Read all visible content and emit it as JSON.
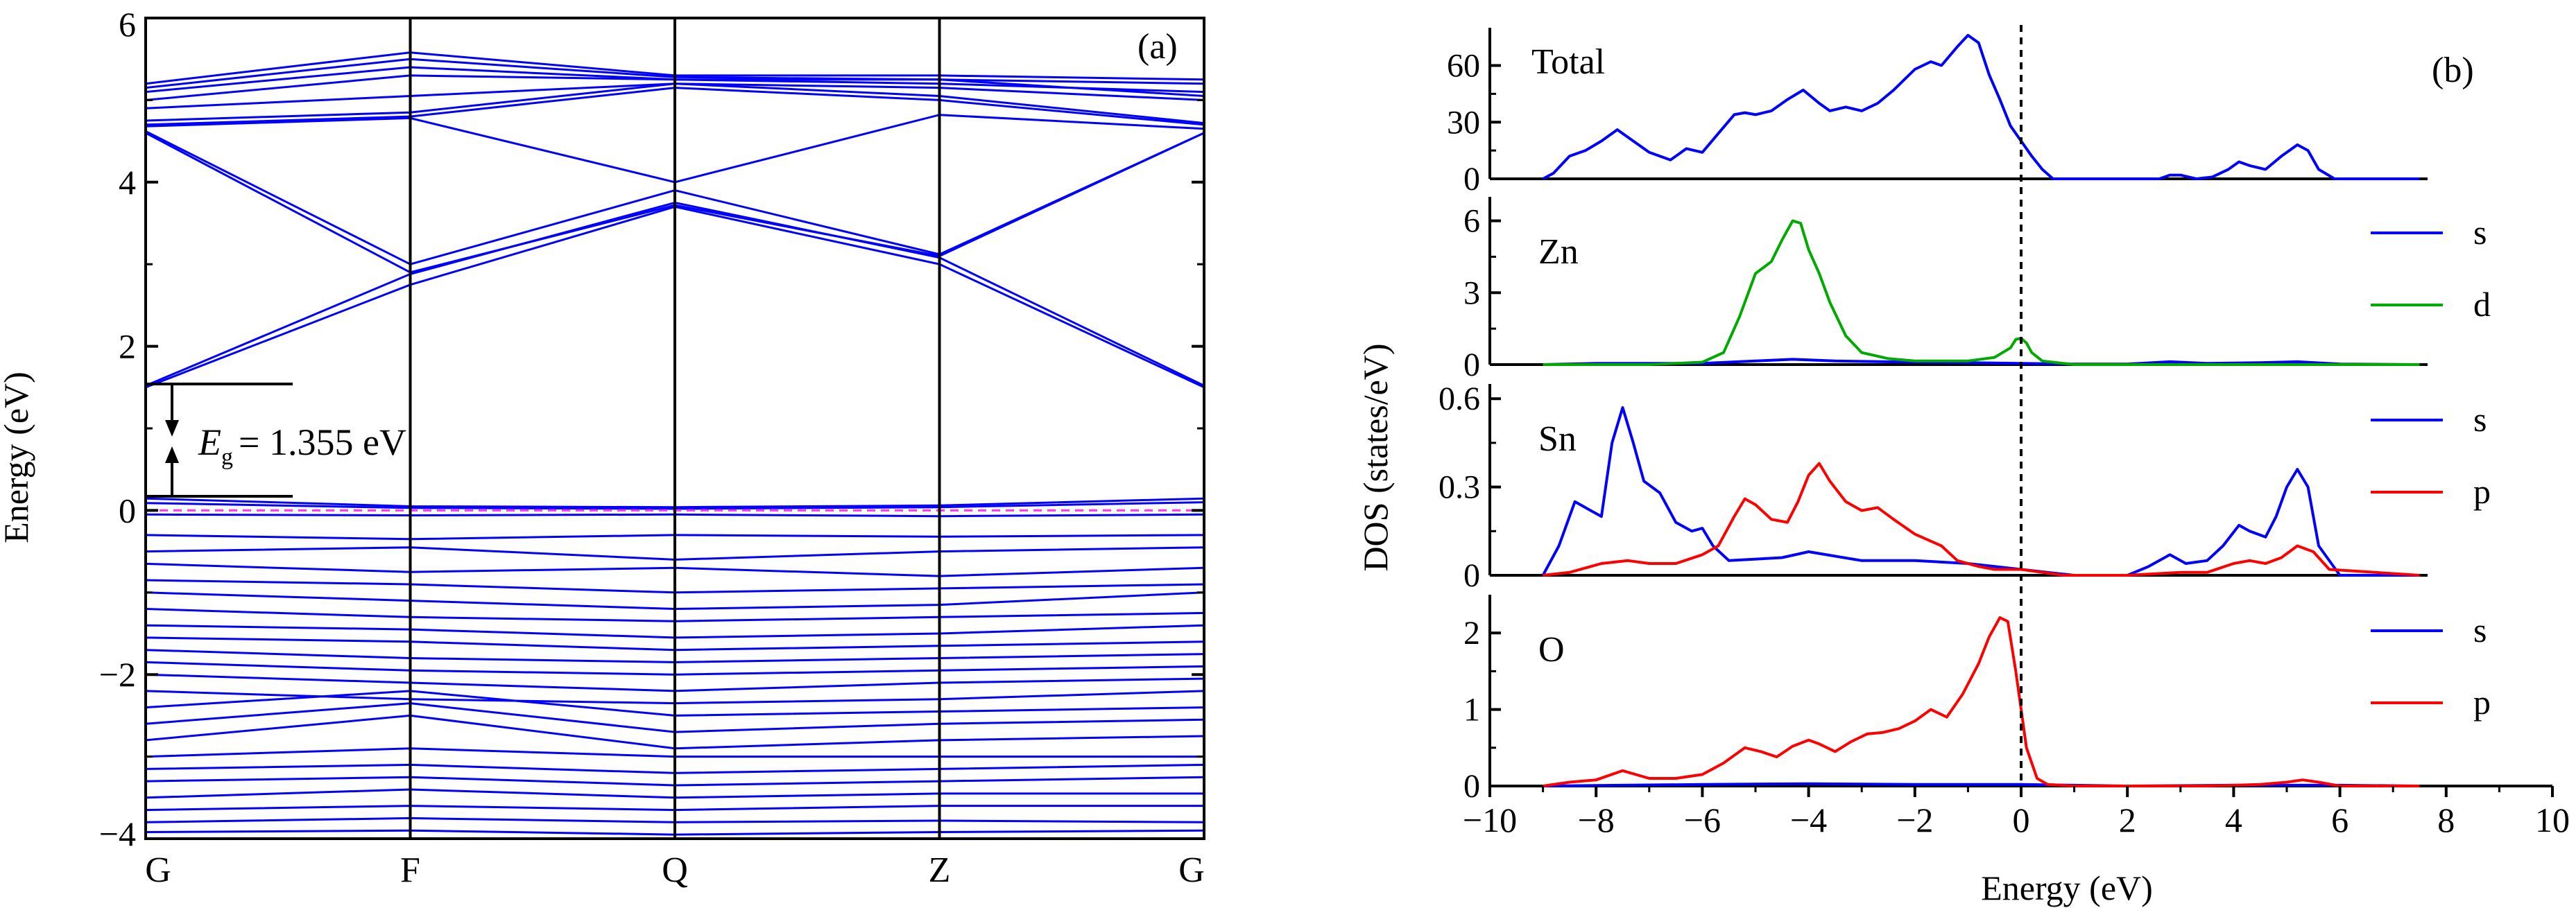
{
  "chart_data": [
    {
      "panel": "(a)",
      "type": "line",
      "xlabel": "",
      "ylabel": "Energy (eV)",
      "ylim": [
        -4,
        6
      ],
      "yticks": [
        -4,
        -2,
        0,
        2,
        4,
        6
      ],
      "ytick_labels": [
        "−4",
        "−2",
        "0",
        "2",
        "4",
        "6"
      ],
      "k_points": [
        "G",
        "F",
        "Q",
        "Z",
        "G"
      ],
      "fermi_level": 0,
      "band_gap": {
        "label_symbol": "E",
        "label_sub": "g",
        "label_value": "= 1.355 eV",
        "cbm": 1.5,
        "vbm": 0.145
      },
      "series": [
        {
          "values": [
            1.5,
            2.75,
            3.7,
            3.0,
            1.5
          ],
          "color": "#0000ff"
        },
        {
          "values": [
            1.52,
            2.88,
            3.75,
            3.08,
            1.52
          ],
          "color": "#0000ff"
        },
        {
          "values": [
            4.6,
            2.9,
            3.72,
            3.1,
            4.6
          ],
          "color": "#0000ff"
        },
        {
          "values": [
            4.62,
            3.0,
            3.9,
            3.12,
            4.6
          ],
          "color": "#0000ff"
        },
        {
          "values": [
            4.68,
            4.78,
            4.0,
            4.82,
            4.65
          ],
          "color": "#0000ff"
        },
        {
          "values": [
            4.7,
            4.8,
            5.15,
            5.0,
            4.7
          ],
          "color": "#0000ff"
        },
        {
          "values": [
            4.75,
            4.85,
            5.2,
            5.05,
            4.72
          ],
          "color": "#0000ff"
        },
        {
          "values": [
            4.9,
            5.05,
            5.2,
            5.15,
            5.0
          ],
          "color": "#0000ff"
        },
        {
          "values": [
            5.0,
            5.3,
            5.25,
            5.25,
            5.05
          ],
          "color": "#0000ff"
        },
        {
          "values": [
            5.1,
            5.4,
            5.25,
            5.2,
            5.1
          ],
          "color": "#0000ff"
        },
        {
          "values": [
            5.15,
            5.5,
            5.28,
            5.25,
            5.2
          ],
          "color": "#0000ff"
        },
        {
          "values": [
            5.2,
            5.58,
            5.3,
            5.3,
            5.25
          ],
          "color": "#0000ff"
        },
        {
          "values": [
            0.145,
            0.05,
            0.04,
            0.06,
            0.145
          ],
          "color": "#0000ff"
        },
        {
          "values": [
            0.09,
            0.03,
            0.02,
            0.04,
            0.1
          ],
          "color": "#0000ff"
        },
        {
          "values": [
            -0.05,
            -0.06,
            -0.05,
            -0.07,
            -0.05
          ],
          "color": "#0000ff"
        },
        {
          "values": [
            -0.3,
            -0.35,
            -0.3,
            -0.32,
            -0.3
          ],
          "color": "#0000ff"
        },
        {
          "values": [
            -0.5,
            -0.45,
            -0.6,
            -0.5,
            -0.45
          ],
          "color": "#0000ff"
        },
        {
          "values": [
            -0.65,
            -0.75,
            -0.7,
            -0.8,
            -0.7
          ],
          "color": "#0000ff"
        },
        {
          "values": [
            -0.85,
            -0.9,
            -1.0,
            -0.95,
            -0.9
          ],
          "color": "#0000ff"
        },
        {
          "values": [
            -1.0,
            -1.1,
            -1.2,
            -1.15,
            -1.0
          ],
          "color": "#0000ff"
        },
        {
          "values": [
            -1.2,
            -1.3,
            -1.35,
            -1.3,
            -1.25
          ],
          "color": "#0000ff"
        },
        {
          "values": [
            -1.4,
            -1.45,
            -1.55,
            -1.5,
            -1.4
          ],
          "color": "#0000ff"
        },
        {
          "values": [
            -1.55,
            -1.6,
            -1.7,
            -1.65,
            -1.6
          ],
          "color": "#0000ff"
        },
        {
          "values": [
            -1.7,
            -1.8,
            -1.85,
            -1.8,
            -1.75
          ],
          "color": "#0000ff"
        },
        {
          "values": [
            -1.85,
            -1.95,
            -2.0,
            -1.95,
            -1.9
          ],
          "color": "#0000ff"
        },
        {
          "values": [
            -2.0,
            -2.1,
            -2.2,
            -2.1,
            -2.05
          ],
          "color": "#0000ff"
        },
        {
          "values": [
            -2.2,
            -2.3,
            -2.35,
            -2.3,
            -2.2
          ],
          "color": "#0000ff"
        },
        {
          "values": [
            -2.4,
            -2.2,
            -2.5,
            -2.45,
            -2.4
          ],
          "color": "#0000ff"
        },
        {
          "values": [
            -2.6,
            -2.35,
            -2.7,
            -2.6,
            -2.55
          ],
          "color": "#0000ff"
        },
        {
          "values": [
            -2.8,
            -2.5,
            -2.9,
            -2.8,
            -2.75
          ],
          "color": "#0000ff"
        },
        {
          "values": [
            -3.0,
            -2.9,
            -3.0,
            -3.0,
            -3.0
          ],
          "color": "#0000ff"
        },
        {
          "values": [
            -3.15,
            -3.1,
            -3.2,
            -3.15,
            -3.1
          ],
          "color": "#0000ff"
        },
        {
          "values": [
            -3.3,
            -3.25,
            -3.35,
            -3.3,
            -3.25
          ],
          "color": "#0000ff"
        },
        {
          "values": [
            -3.5,
            -3.4,
            -3.5,
            -3.45,
            -3.45
          ],
          "color": "#0000ff"
        },
        {
          "values": [
            -3.65,
            -3.6,
            -3.65,
            -3.6,
            -3.6
          ],
          "color": "#0000ff"
        },
        {
          "values": [
            -3.8,
            -3.75,
            -3.8,
            -3.78,
            -3.8
          ],
          "color": "#0000ff"
        },
        {
          "values": [
            -3.92,
            -3.9,
            -3.95,
            -3.92,
            -3.9
          ],
          "color": "#0000ff"
        }
      ]
    },
    {
      "panel": "(b)",
      "type": "line",
      "xlabel": "Energy (eV)",
      "ylabel": "DOS (states/eV)",
      "xlim": [
        -10,
        10
      ],
      "xticks": [
        -10,
        -8,
        -6,
        -4,
        -2,
        0,
        2,
        4,
        6,
        8,
        10
      ],
      "xtick_labels": [
        "−10",
        "−8",
        "−6",
        "−4",
        "−2",
        "0",
        "2",
        "4",
        "6",
        "8",
        "10"
      ],
      "fermi_level": 0,
      "subplots": [
        {
          "label": "Total",
          "ylim": [
            0,
            80
          ],
          "yticks": [
            0,
            30,
            60
          ],
          "ytick_labels": [
            "0",
            "30",
            "60"
          ],
          "series": [
            {
              "name": "",
              "color": "#0000ff",
              "x": [
                -9.0,
                -8.8,
                -8.5,
                -8.2,
                -7.9,
                -7.6,
                -7.3,
                -7.0,
                -6.6,
                -6.3,
                -6.0,
                -5.7,
                -5.4,
                -5.2,
                -5.0,
                -4.7,
                -4.4,
                -4.1,
                -3.8,
                -3.6,
                -3.3,
                -3.0,
                -2.7,
                -2.4,
                -2.0,
                -1.7,
                -1.5,
                -1.2,
                -1.0,
                -0.8,
                -0.6,
                -0.4,
                -0.2,
                0.0,
                0.2,
                0.4,
                0.6,
                1.0,
                2.0,
                2.6,
                2.8,
                3.0,
                3.3,
                3.6,
                3.9,
                4.1,
                4.3,
                4.6,
                4.9,
                5.2,
                5.4,
                5.6,
                5.9,
                7.5
              ],
              "y": [
                0,
                3,
                12,
                15,
                20,
                26,
                20,
                14,
                10,
                16,
                14,
                24,
                34,
                35,
                34,
                36,
                42,
                47,
                40,
                36,
                38,
                36,
                40,
                47,
                58,
                62,
                60,
                70,
                76,
                72,
                55,
                42,
                28,
                20,
                12,
                5,
                0,
                0,
                0,
                0,
                2,
                2,
                0,
                1,
                5,
                9,
                7,
                5,
                12,
                18,
                15,
                5,
                0,
                0
              ]
            }
          ]
        },
        {
          "label": "Zn",
          "ylim": [
            0,
            7
          ],
          "yticks": [
            0,
            3,
            6
          ],
          "ytick_labels": [
            "0",
            "3",
            "6"
          ],
          "series": [
            {
              "name": "s",
              "color": "#0000ff",
              "x": [
                -9.0,
                -8.0,
                -6.0,
                -5.0,
                -4.3,
                -3.5,
                -2.0,
                -1.0,
                0.0,
                1.0,
                2.0,
                2.8,
                3.5,
                4.5,
                5.2,
                6.0,
                7.5
              ],
              "y": [
                0,
                0.05,
                0.05,
                0.15,
                0.22,
                0.15,
                0.1,
                0.08,
                0.05,
                0.02,
                0.02,
                0.12,
                0.05,
                0.08,
                0.12,
                0.02,
                0
              ]
            },
            {
              "name": "d",
              "color": "#00aa00",
              "x": [
                -9.0,
                -7.0,
                -6.0,
                -5.6,
                -5.3,
                -5.0,
                -4.7,
                -4.5,
                -4.3,
                -4.15,
                -4.0,
                -3.8,
                -3.6,
                -3.3,
                -3.0,
                -2.5,
                -2.0,
                -1.0,
                -0.5,
                -0.2,
                -0.1,
                0.0,
                0.1,
                0.2,
                0.4,
                1.0,
                7.5
              ],
              "y": [
                0,
                0,
                0.1,
                0.5,
                2.0,
                3.8,
                4.3,
                5.2,
                6.0,
                5.9,
                4.8,
                3.8,
                2.6,
                1.2,
                0.5,
                0.25,
                0.15,
                0.15,
                0.3,
                0.7,
                1.05,
                1.1,
                0.9,
                0.5,
                0.15,
                0,
                0
              ]
            }
          ]
        },
        {
          "label": "Sn",
          "ylim": [
            0,
            0.65
          ],
          "yticks": [
            0,
            0.3,
            0.6
          ],
          "ytick_labels": [
            "0",
            "0.3",
            "0.6"
          ],
          "series": [
            {
              "name": "s",
              "color": "#0000ff",
              "x": [
                -9.0,
                -8.7,
                -8.4,
                -8.1,
                -7.9,
                -7.7,
                -7.5,
                -7.3,
                -7.1,
                -6.8,
                -6.5,
                -6.2,
                -6.0,
                -5.8,
                -5.5,
                -4.5,
                -4.0,
                -3.0,
                -2.0,
                -1.0,
                0.0,
                0.5,
                1.0,
                2.0,
                2.4,
                2.8,
                3.1,
                3.5,
                3.8,
                4.1,
                4.3,
                4.6,
                4.8,
                5.0,
                5.2,
                5.4,
                5.6,
                6.0,
                7.5
              ],
              "y": [
                0,
                0.1,
                0.25,
                0.22,
                0.2,
                0.45,
                0.57,
                0.45,
                0.32,
                0.28,
                0.18,
                0.15,
                0.16,
                0.1,
                0.05,
                0.06,
                0.08,
                0.05,
                0.05,
                0.04,
                0.02,
                0.01,
                0,
                0,
                0.03,
                0.07,
                0.04,
                0.05,
                0.1,
                0.17,
                0.15,
                0.13,
                0.2,
                0.3,
                0.36,
                0.3,
                0.1,
                0,
                0
              ]
            },
            {
              "name": "p",
              "color": "#ff0000",
              "x": [
                -9.0,
                -8.5,
                -7.9,
                -7.4,
                -7.0,
                -6.5,
                -6.0,
                -5.7,
                -5.4,
                -5.2,
                -5.0,
                -4.7,
                -4.4,
                -4.2,
                -4.0,
                -3.8,
                -3.6,
                -3.3,
                -3.0,
                -2.7,
                -2.4,
                -2.0,
                -1.5,
                -1.2,
                -0.8,
                -0.5,
                0.0,
                0.4,
                0.8,
                2.0,
                3.0,
                3.5,
                4.0,
                4.3,
                4.6,
                4.9,
                5.2,
                5.5,
                5.8,
                7.5
              ],
              "y": [
                0,
                0.01,
                0.04,
                0.05,
                0.04,
                0.04,
                0.07,
                0.1,
                0.2,
                0.26,
                0.24,
                0.19,
                0.18,
                0.25,
                0.34,
                0.38,
                0.32,
                0.25,
                0.22,
                0.23,
                0.19,
                0.14,
                0.1,
                0.05,
                0.03,
                0.02,
                0.02,
                0.01,
                0,
                0,
                0.01,
                0.01,
                0.04,
                0.05,
                0.04,
                0.06,
                0.1,
                0.08,
                0.02,
                0
              ]
            }
          ]
        },
        {
          "label": "O",
          "ylim": [
            0,
            2.5
          ],
          "yticks": [
            0,
            1,
            2
          ],
          "ytick_labels": [
            "0",
            "1",
            "2"
          ],
          "series": [
            {
              "name": "s",
              "color": "#0000ff",
              "x": [
                -9.0,
                -6.0,
                -4.0,
                -2.0,
                0.0,
                2.0,
                4.0,
                6.0,
                7.5
              ],
              "y": [
                0,
                0.02,
                0.03,
                0.02,
                0.02,
                0,
                0.01,
                0.01,
                0
              ]
            },
            {
              "name": "p",
              "color": "#ff0000",
              "x": [
                -9.0,
                -8.5,
                -8.0,
                -7.5,
                -7.0,
                -6.5,
                -6.0,
                -5.6,
                -5.2,
                -4.9,
                -4.6,
                -4.3,
                -4.0,
                -3.8,
                -3.5,
                -3.2,
                -2.9,
                -2.6,
                -2.3,
                -2.0,
                -1.7,
                -1.4,
                -1.1,
                -0.8,
                -0.6,
                -0.4,
                -0.25,
                -0.1,
                0.1,
                0.3,
                0.5,
                1.0,
                2.0,
                3.5,
                4.5,
                5.0,
                5.3,
                5.6,
                6.0,
                7.5
              ],
              "y": [
                0,
                0.05,
                0.08,
                0.2,
                0.1,
                0.1,
                0.15,
                0.3,
                0.5,
                0.45,
                0.38,
                0.52,
                0.6,
                0.55,
                0.45,
                0.58,
                0.68,
                0.7,
                0.75,
                0.85,
                1.0,
                0.9,
                1.2,
                1.6,
                1.95,
                2.2,
                2.15,
                1.5,
                0.5,
                0.1,
                0.02,
                0,
                0,
                0,
                0.02,
                0.05,
                0.08,
                0.05,
                0,
                0
              ]
            }
          ]
        }
      ]
    }
  ]
}
